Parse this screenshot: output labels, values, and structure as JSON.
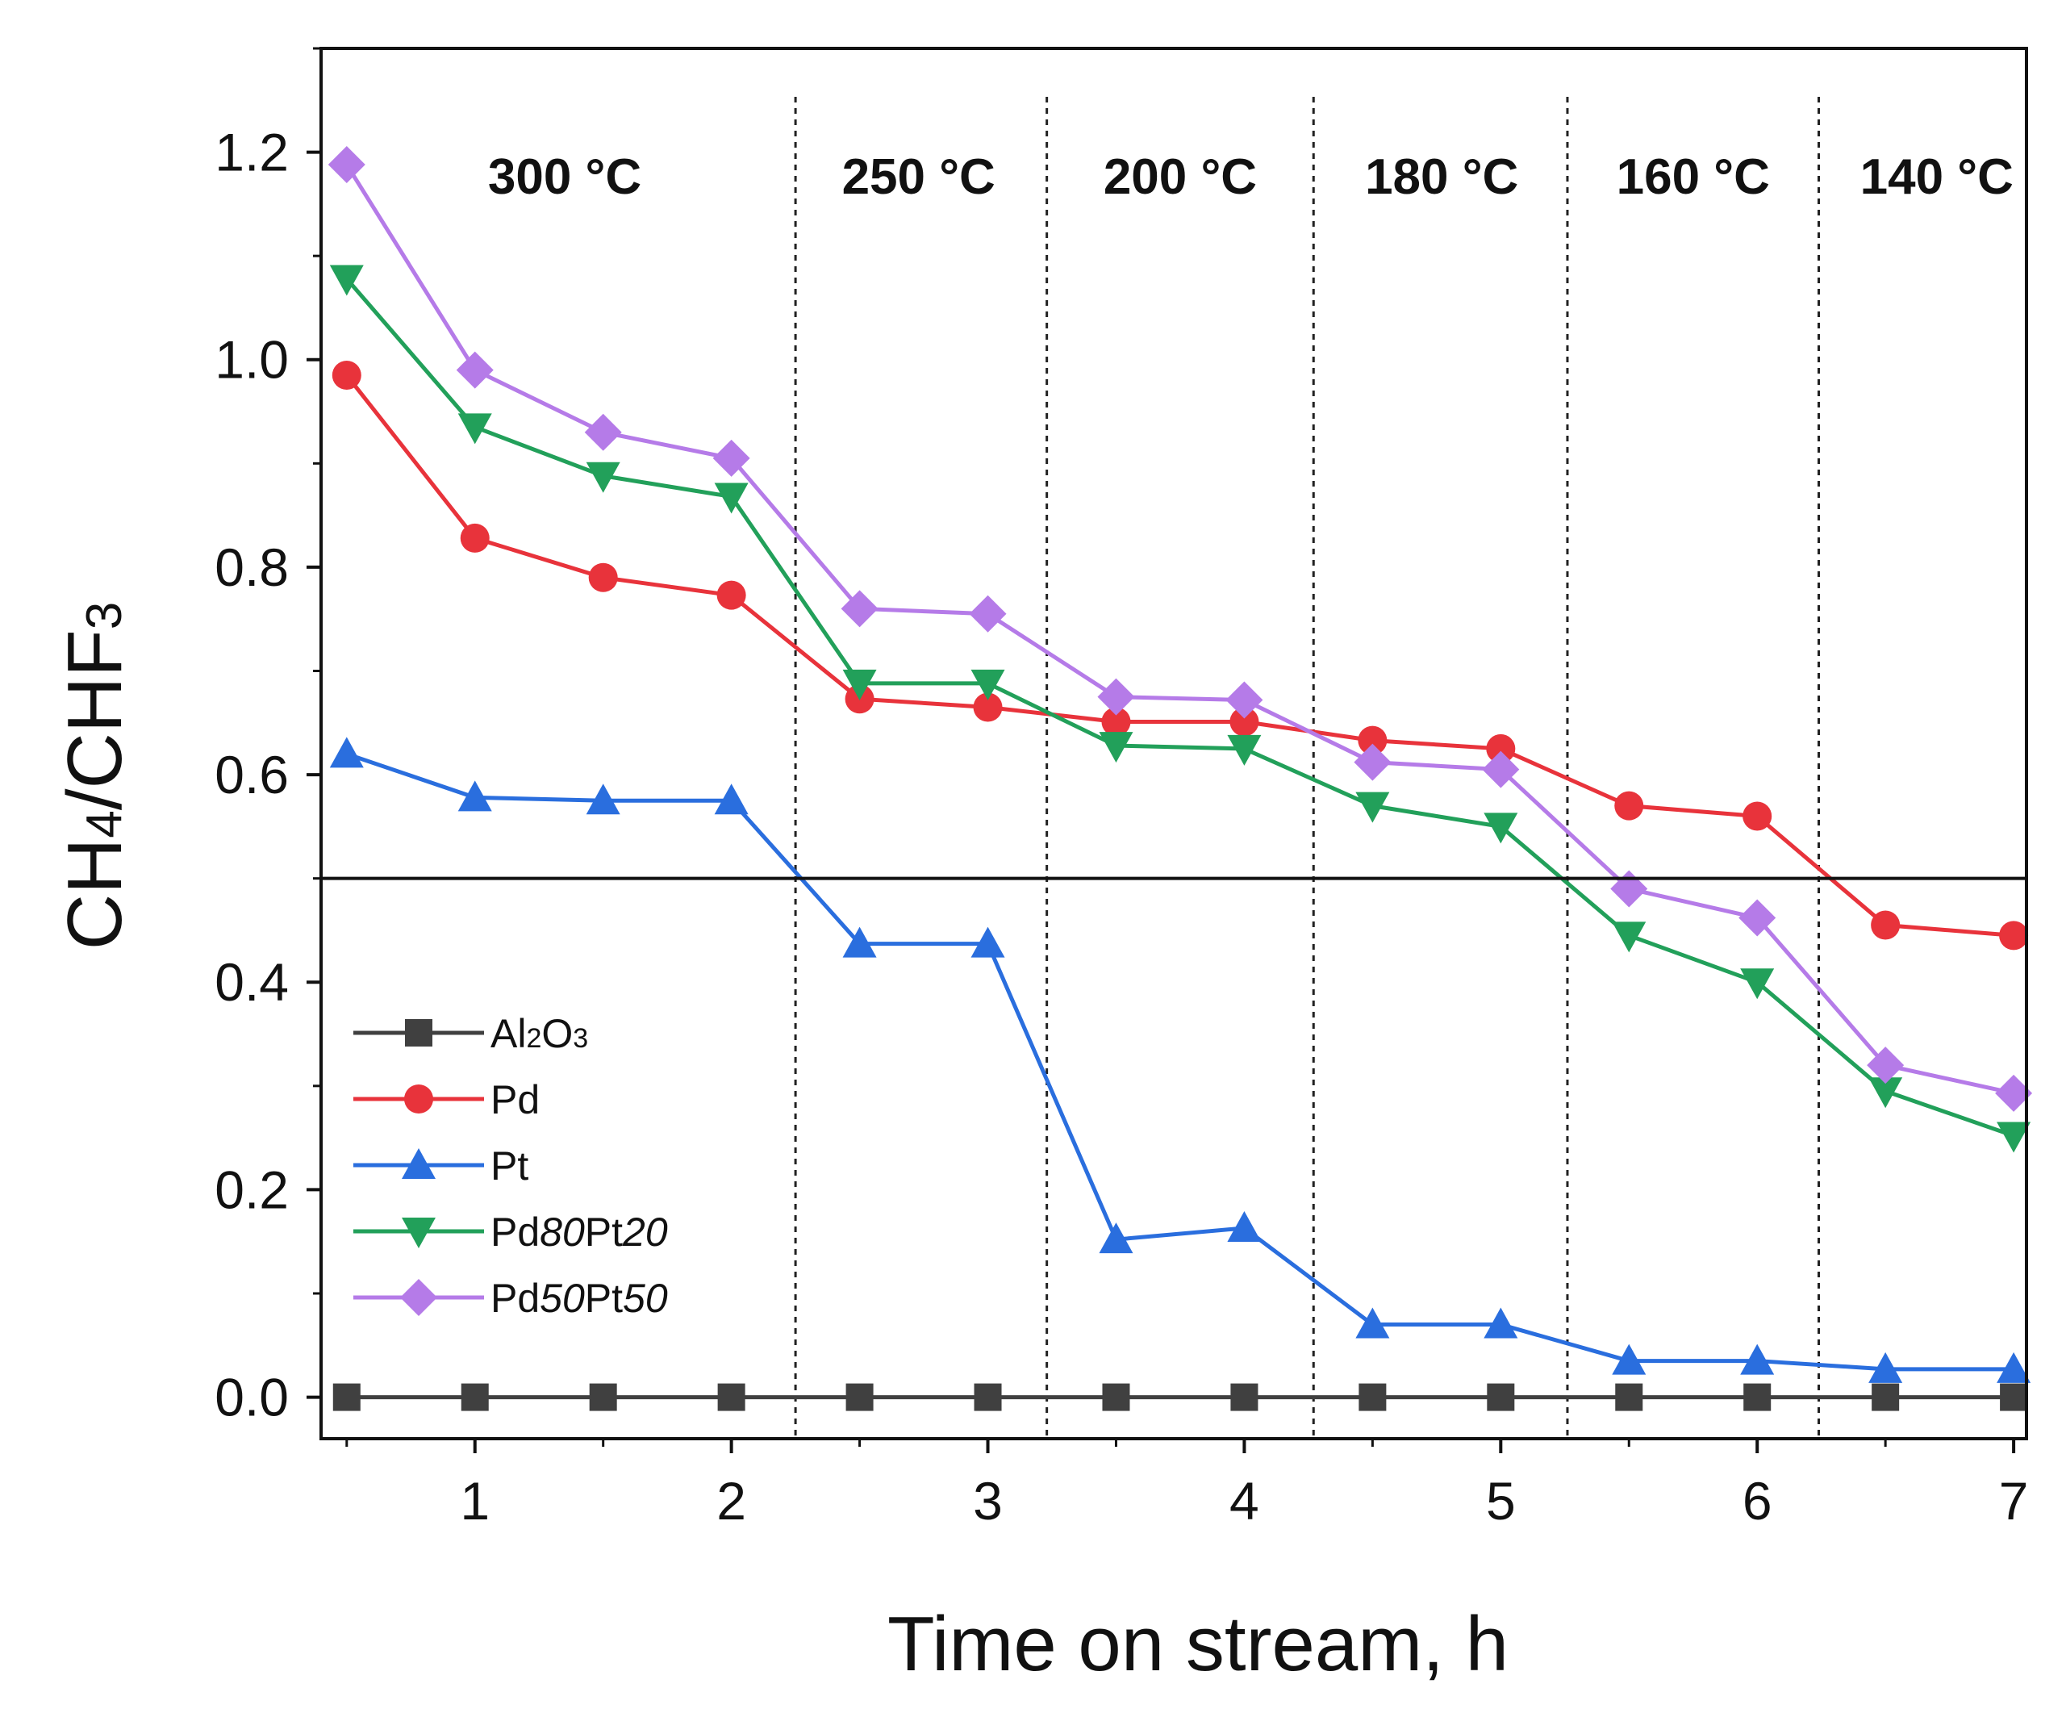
{
  "chart_data": {
    "type": "line",
    "title": "",
    "xlabel": "Time on stream, h",
    "ylabel": {
      "parts": [
        "CH",
        "4",
        "/CHF",
        "3"
      ]
    },
    "xlim": [
      0.4,
      7.05
    ],
    "ylim": [
      -0.04,
      1.3
    ],
    "xticks": [
      1,
      2,
      3,
      4,
      5,
      6,
      7
    ],
    "xtick_labels": [
      "1",
      "2",
      "3",
      "4",
      "5",
      "6",
      "7"
    ],
    "yticks": [
      0.0,
      0.2,
      0.4,
      0.6,
      0.8,
      1.0,
      1.2
    ],
    "ytick_labels": [
      "0.0",
      "0.2",
      "0.4",
      "0.6",
      "0.8",
      "1.0",
      "1.2"
    ],
    "grid": false,
    "reference_line_y": 0.5,
    "temperature_dividers_x": [
      2.25,
      3.23,
      4.27,
      5.26,
      6.24
    ],
    "temperature_regions": [
      {
        "label": "300 °C",
        "x_center": 1.35
      },
      {
        "label": "250 °C",
        "x_center": 2.73
      },
      {
        "label": "200 °C",
        "x_center": 3.75
      },
      {
        "label": "180 °C",
        "x_center": 4.77
      },
      {
        "label": "160 °C",
        "x_center": 5.75
      },
      {
        "label": "140 °C",
        "x_center": 6.7
      }
    ],
    "x": [
      0.5,
      1,
      1.5,
      2,
      2.5,
      3,
      3.5,
      4,
      4.5,
      5,
      5.5,
      6,
      6.5,
      7
    ],
    "series": [
      {
        "name": "Al2O3",
        "legend_parts": [
          {
            "t": "Al",
            "sub": false,
            "it": false
          },
          {
            "t": "2",
            "sub": true,
            "it": false
          },
          {
            "t": "O",
            "sub": false,
            "it": false
          },
          {
            "t": "3",
            "sub": true,
            "it": false
          }
        ],
        "color": "#404040",
        "marker": "square",
        "values": [
          0,
          0,
          0,
          0,
          0,
          0,
          0,
          0,
          0,
          0,
          0,
          0,
          0,
          0
        ]
      },
      {
        "name": "Pd",
        "legend_parts": [
          {
            "t": "Pd",
            "sub": false,
            "it": false
          }
        ],
        "color": "#e8333b",
        "marker": "circle",
        "values": [
          0.985,
          0.828,
          0.79,
          0.773,
          0.673,
          0.665,
          0.651,
          0.651,
          0.633,
          0.625,
          0.57,
          0.56,
          0.455,
          0.445
        ]
      },
      {
        "name": "Pt",
        "legend_parts": [
          {
            "t": "Pt",
            "sub": false,
            "it": false
          }
        ],
        "color": "#2a6ede",
        "marker": "triangle-up",
        "values": [
          0.62,
          0.578,
          0.575,
          0.575,
          0.437,
          0.437,
          0.152,
          0.163,
          0.07,
          0.07,
          0.035,
          0.035,
          0.027,
          0.027
        ]
      },
      {
        "name": "Pd80Pt20",
        "legend_parts": [
          {
            "t": "Pd",
            "sub": false,
            "it": false
          },
          {
            "t": "80",
            "sub": false,
            "it": true
          },
          {
            "t": "Pt",
            "sub": false,
            "it": false
          },
          {
            "t": "20",
            "sub": false,
            "it": true
          }
        ],
        "color": "#22a05a",
        "marker": "triangle-down",
        "values": [
          1.078,
          0.935,
          0.888,
          0.868,
          0.688,
          0.688,
          0.628,
          0.625,
          0.57,
          0.55,
          0.445,
          0.4,
          0.295,
          0.252
        ]
      },
      {
        "name": "Pd50Pt50",
        "legend_parts": [
          {
            "t": "Pd",
            "sub": false,
            "it": false
          },
          {
            "t": "50",
            "sub": false,
            "it": true
          },
          {
            "t": "Pt",
            "sub": false,
            "it": false
          },
          {
            "t": "50",
            "sub": false,
            "it": true
          }
        ],
        "color": "#b57be8",
        "marker": "diamond",
        "values": [
          1.188,
          0.99,
          0.93,
          0.905,
          0.76,
          0.755,
          0.675,
          0.672,
          0.612,
          0.605,
          0.49,
          0.462,
          0.32,
          0.293
        ]
      }
    ],
    "legend_position": "lower-left"
  }
}
